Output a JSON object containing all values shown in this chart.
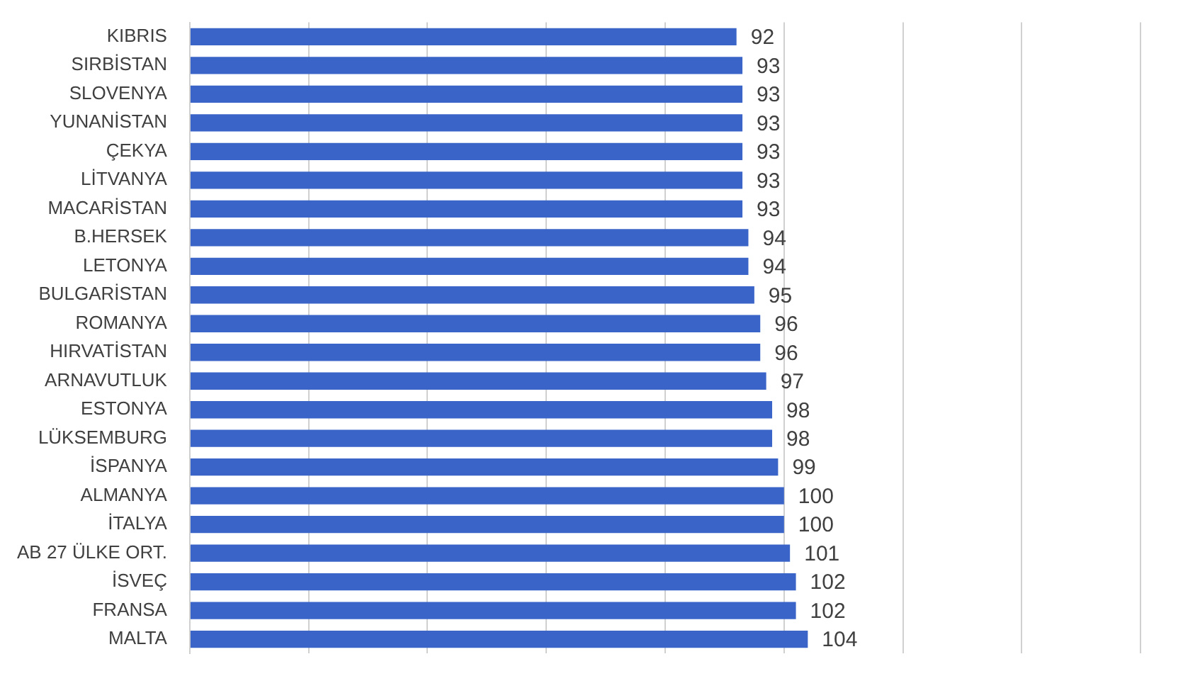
{
  "chart_data": {
    "type": "bar",
    "orientation": "horizontal",
    "categories": [
      "KIBRIS",
      "SIRBİSTAN",
      "SLOVENYA",
      "YUNANİSTAN",
      "ÇEKYA",
      "LİTVANYA",
      "MACARİSTAN",
      "B.HERSEK",
      "LETONYA",
      "BULGARİSTAN",
      "ROMANYA",
      "HIRVATİSTAN",
      "ARNAVUTLUK",
      "ESTONYA",
      "LÜKSEMBURG",
      "İSPANYA",
      "ALMANYA",
      "İTALYA",
      "AB 27 ÜLKE ORT.",
      "İSVEÇ",
      "FRANSA",
      "MALTA"
    ],
    "values": [
      92,
      93,
      93,
      93,
      93,
      93,
      93,
      94,
      94,
      95,
      96,
      96,
      97,
      98,
      98,
      99,
      100,
      100,
      101,
      102,
      102,
      104
    ],
    "color": "#3a64c8",
    "data_labels": true,
    "grid": "x",
    "tick_labels": "y",
    "xlim": [
      0,
      170
    ],
    "xticks": [
      {
        "value": 0,
        "label": null
      },
      {
        "value": 20,
        "label": null
      },
      {
        "value": 40,
        "label": null
      },
      {
        "value": 60,
        "label": null
      },
      {
        "value": 80,
        "label": null
      },
      {
        "value": 100,
        "label": null
      },
      {
        "value": 120,
        "label": null
      },
      {
        "value": 140,
        "label": null
      },
      {
        "value": 160,
        "label": null
      }
    ]
  }
}
